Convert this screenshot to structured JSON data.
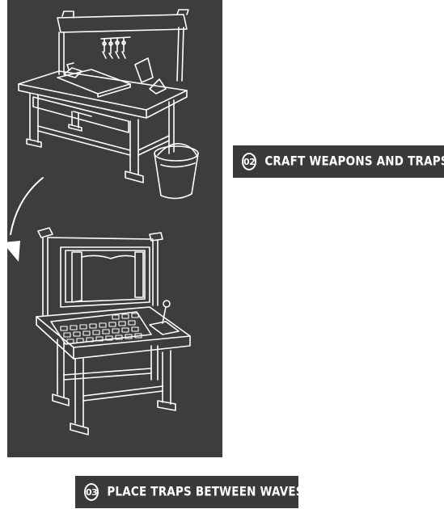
{
  "steps": [
    {
      "number": "02",
      "text": "CRAFT WEAPONS AND TRAPS"
    },
    {
      "number": "03",
      "text": "PLACE TRAPS BETWEEN WAVES"
    }
  ],
  "colors": {
    "panel": "#3d3d3d",
    "label_bg": "#3a3a3a",
    "line": "#ffffff"
  },
  "icons": [
    "workbench-illustration",
    "bucket-illustration",
    "curved-arrow-icon",
    "trap-console-illustration"
  ]
}
